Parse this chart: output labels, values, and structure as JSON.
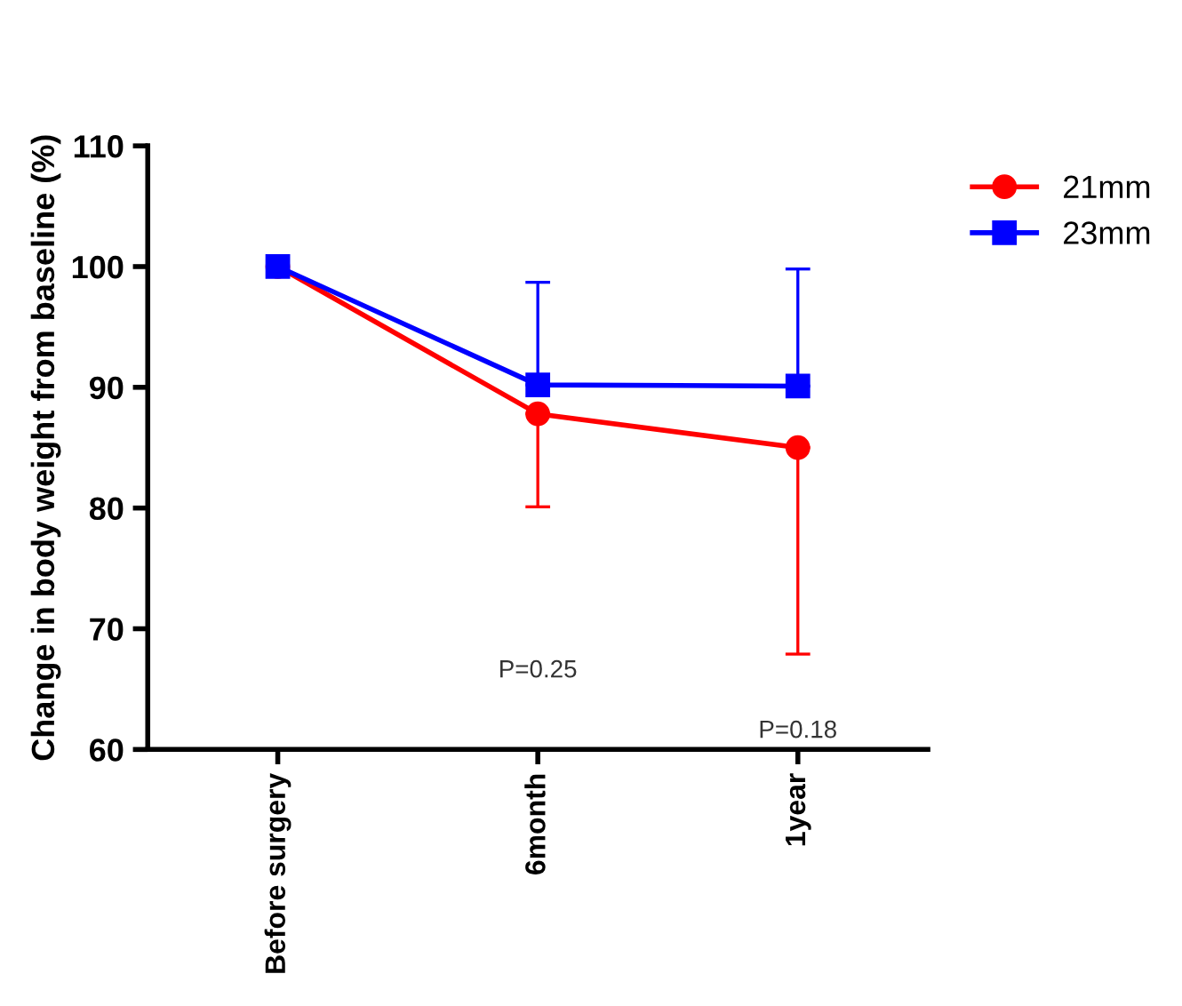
{
  "chart_data": {
    "type": "line",
    "ylabel": "Change in body weight from baseline (%)",
    "categories": [
      "Before surgery",
      "6month",
      "1year"
    ],
    "series": [
      {
        "name": "21mm",
        "color": "#ff0000",
        "marker": "circle",
        "values": [
          100,
          87.8,
          85.0
        ],
        "errors": [
          null,
          [
            80.1,
            87.8
          ],
          [
            67.9,
            85.0
          ]
        ]
      },
      {
        "name": "23mm",
        "color": "#0000ff",
        "marker": "square",
        "values": [
          100,
          90.2,
          90.1
        ],
        "errors": [
          null,
          [
            90.2,
            98.7
          ],
          [
            90.1,
            99.8
          ]
        ]
      }
    ],
    "ylim": [
      60,
      110
    ],
    "yticks": [
      60,
      70,
      80,
      90,
      100,
      110
    ],
    "grid": false,
    "legend": "top right",
    "annotations": [
      "P=0.25",
      "P=0.18"
    ]
  }
}
